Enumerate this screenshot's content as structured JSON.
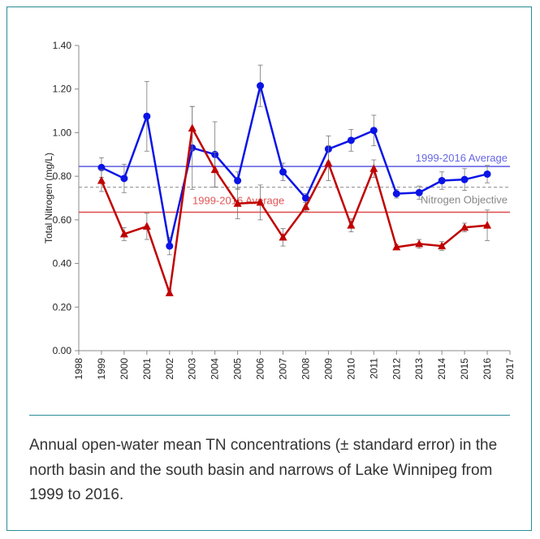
{
  "chart_data": {
    "type": "line",
    "y_label": "Total Nitrogen (mg/L)",
    "x": [
      1999,
      2000,
      2001,
      2002,
      2003,
      2004,
      2005,
      2006,
      2007,
      2008,
      2009,
      2010,
      2011,
      2012,
      2013,
      2014,
      2015,
      2016
    ],
    "xlim": [
      1998,
      2017
    ],
    "xticks": [
      1998,
      1999,
      2000,
      2001,
      2002,
      2003,
      2004,
      2005,
      2006,
      2007,
      2008,
      2009,
      2010,
      2011,
      2012,
      2013,
      2014,
      2015,
      2016,
      2017
    ],
    "ylim": [
      0,
      1.4
    ],
    "yticks": [
      {
        "value": 0,
        "label": "0.00"
      },
      {
        "value": 0.2,
        "label": "0.20"
      },
      {
        "value": 0.4,
        "label": "0.40"
      },
      {
        "value": 0.6,
        "label": "0.60"
      },
      {
        "value": 0.8,
        "label": "0.80"
      },
      {
        "value": 1,
        "label": "1.00"
      },
      {
        "value": 1.2,
        "label": "1.20"
      },
      {
        "value": 1.4,
        "label": "1.40"
      }
    ],
    "series": [
      {
        "color": "#0a14e6",
        "marker": "circle",
        "values": [
          0.84,
          0.79,
          1.075,
          0.48,
          0.93,
          0.9,
          0.78,
          1.215,
          0.82,
          0.7,
          0.925,
          0.965,
          1.01,
          0.72,
          0.725,
          0.78,
          0.785,
          0.81
        ],
        "errors": [
          0.045,
          0.065,
          0.16,
          0.04,
          0.19,
          0.15,
          0.04,
          0.095,
          0.04,
          0.02,
          0.06,
          0.05,
          0.07,
          0.02,
          0.03,
          0.04,
          0.05,
          0.04
        ]
      },
      {
        "color": "#c00000",
        "marker": "triangle",
        "values": [
          0.78,
          0.535,
          0.57,
          0.265,
          1.02,
          0.83,
          0.675,
          0.68,
          0.52,
          0.66,
          0.86,
          0.575,
          0.835,
          0.475,
          0.49,
          0.48,
          0.565,
          0.575
        ],
        "errors": [
          0.05,
          0.03,
          0.06,
          0.01,
          0.1,
          0.08,
          0.07,
          0.08,
          0.04,
          0.02,
          0.08,
          0.03,
          0.04,
          0.01,
          0.02,
          0.02,
          0.02,
          0.07
        ]
      }
    ],
    "reference_lines": [
      {
        "value": 0.845,
        "label": "1999-2016 Average",
        "color": "#6666e6"
      },
      {
        "value": 0.635,
        "label": "1999-2016 Average",
        "color": "#e05555"
      },
      {
        "value": 0.75,
        "label": "Nitrogen Objective",
        "color": "#999999",
        "dashed": true
      }
    ]
  },
  "caption": "Annual open-water mean TN concentrations (± standard error) in the north basin and the south basin and narrows of Lake Winnipeg from 1999 to 2016."
}
